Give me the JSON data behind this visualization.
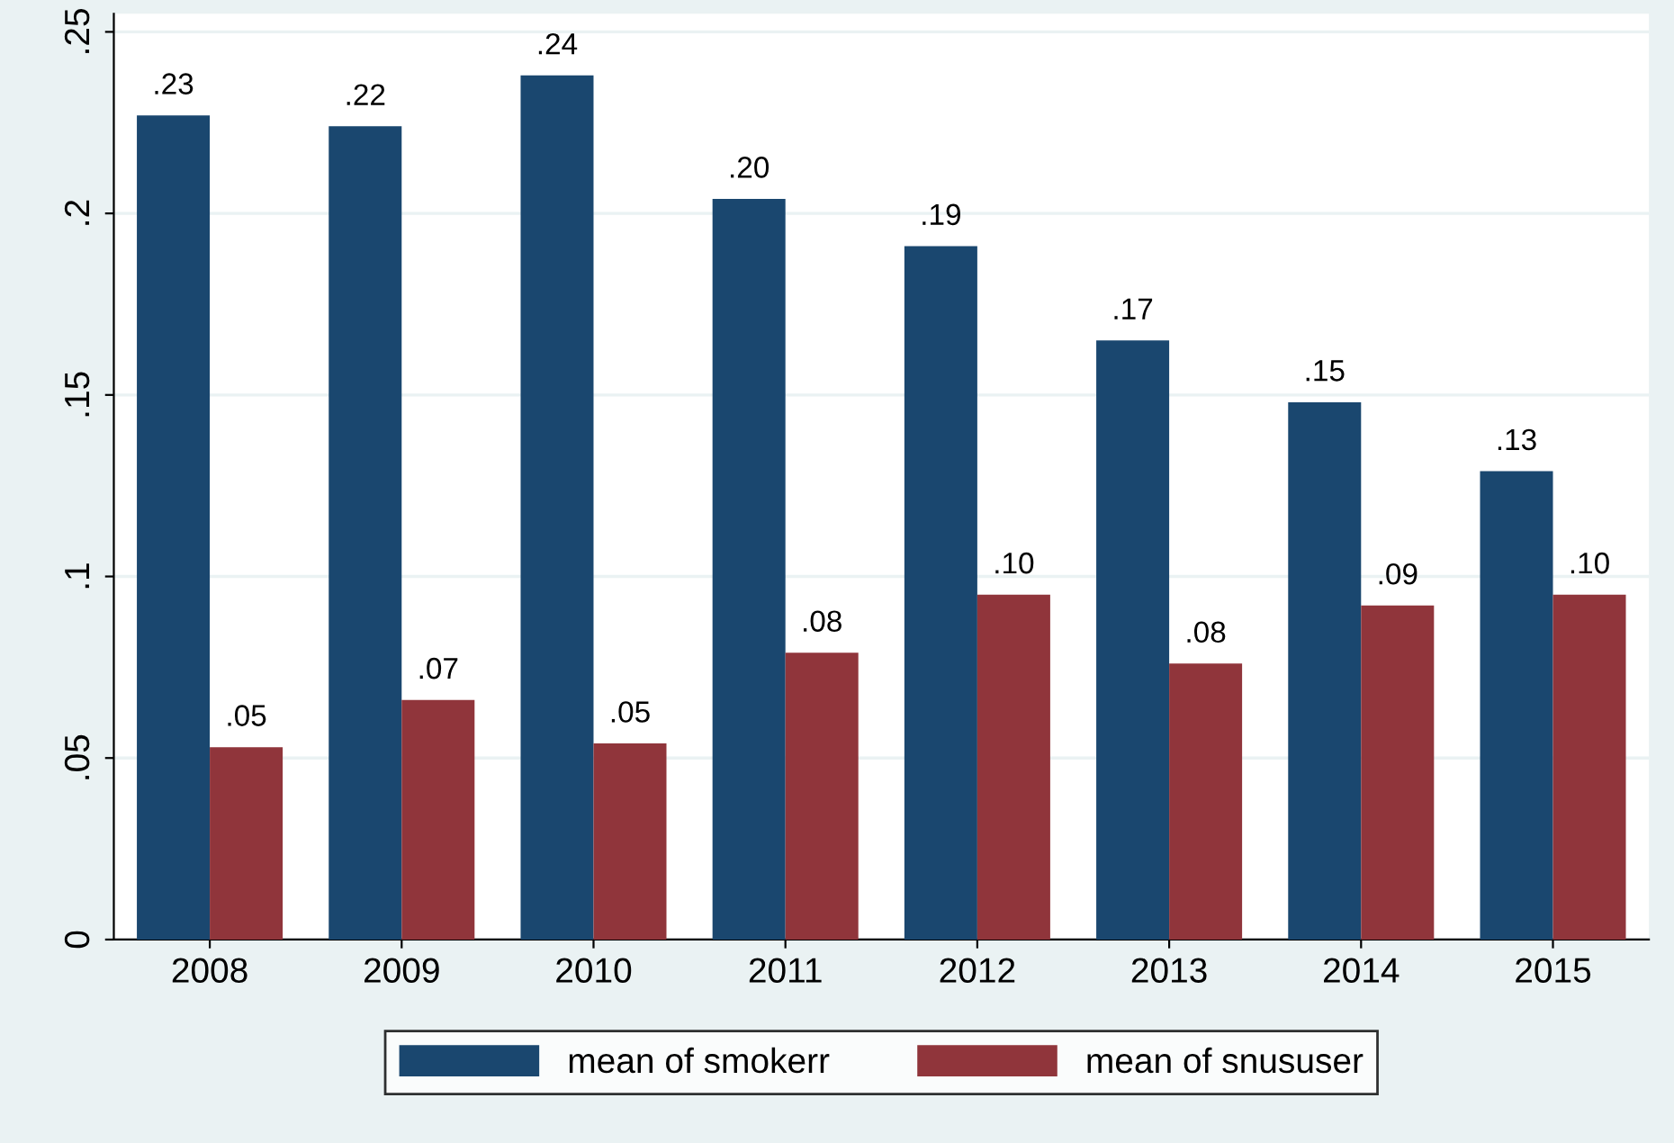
{
  "chart_data": {
    "type": "bar",
    "categories": [
      "2008",
      "2009",
      "2010",
      "2011",
      "2012",
      "2013",
      "2014",
      "2015"
    ],
    "series": [
      {
        "name": "mean of smokerr",
        "color": "#1a476f",
        "values": [
          0.227,
          0.224,
          0.238,
          0.204,
          0.191,
          0.165,
          0.148,
          0.129
        ],
        "value_labels": [
          ".23",
          ".22",
          ".24",
          ".20",
          ".19",
          ".17",
          ".15",
          ".13"
        ]
      },
      {
        "name": "mean of snususer",
        "color": "#90353b",
        "values": [
          0.053,
          0.066,
          0.054,
          0.079,
          0.095,
          0.076,
          0.092,
          0.095
        ],
        "value_labels": [
          ".05",
          ".07",
          ".05",
          ".08",
          ".10",
          ".08",
          ".09",
          ".10"
        ]
      }
    ],
    "ylim": [
      0,
      0.255
    ],
    "yticks": [
      {
        "value": 0,
        "label": "0"
      },
      {
        "value": 0.05,
        "label": ".05"
      },
      {
        "value": 0.1,
        "label": ".1"
      },
      {
        "value": 0.15,
        "label": ".15"
      },
      {
        "value": 0.2,
        "label": ".2"
      },
      {
        "value": 0.25,
        "label": ".25"
      }
    ],
    "grid": "y",
    "legend": "bottom"
  }
}
